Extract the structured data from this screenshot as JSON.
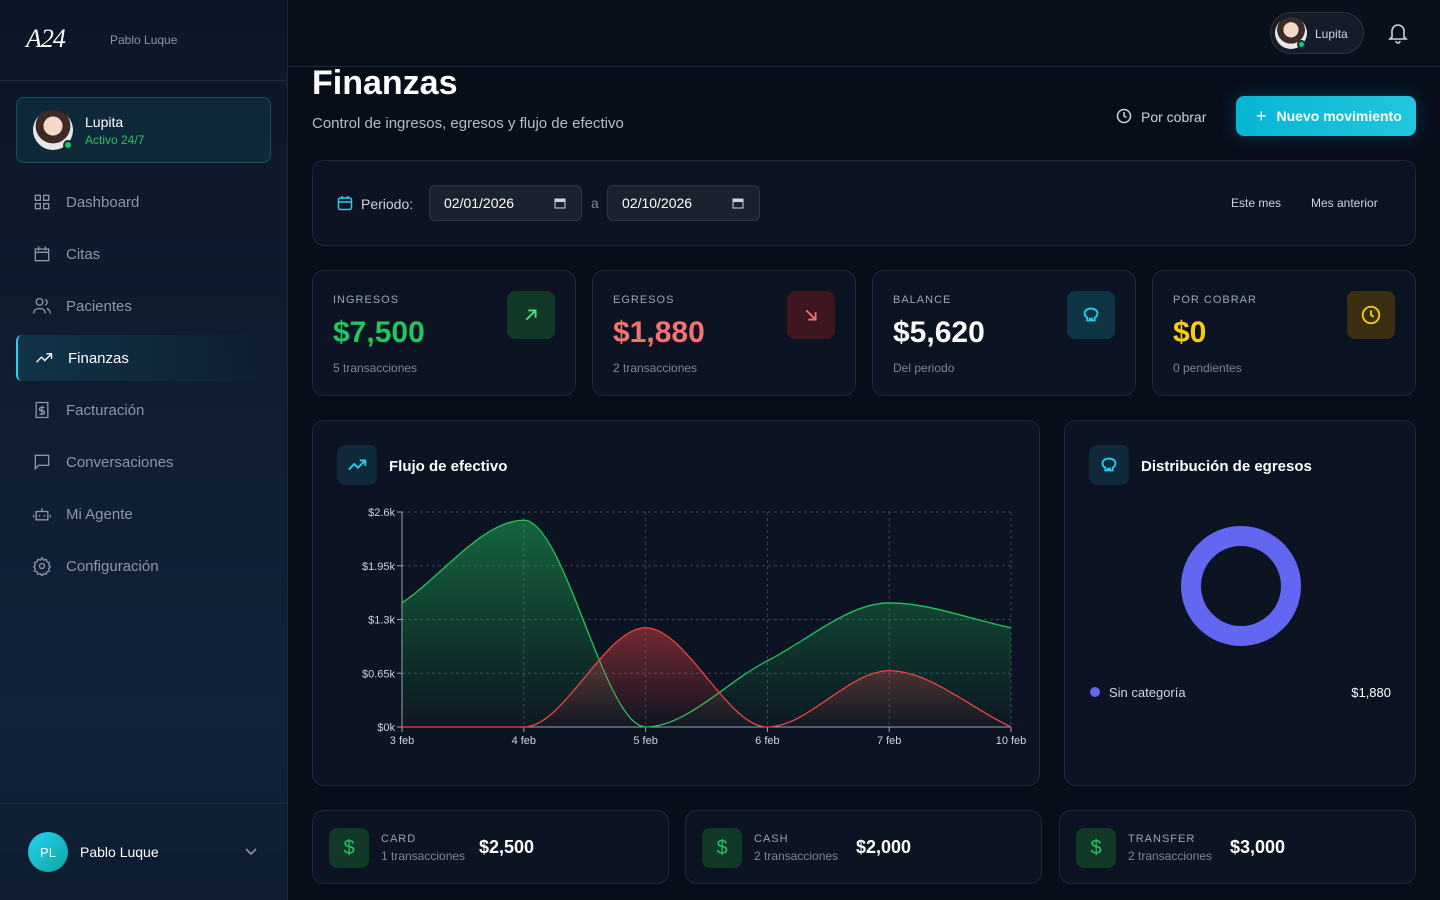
{
  "sidebar": {
    "brand": "A24",
    "brand_user": "Pablo Luque",
    "agent": {
      "name": "Lupita",
      "status": "Activo 24/7"
    },
    "nav": [
      "Dashboard",
      "Citas",
      "Pacientes",
      "Finanzas",
      "Facturación",
      "Conversaciones",
      "Mi Agente",
      "Configuración"
    ],
    "user": {
      "initials": "PL",
      "name": "Pablo Luque"
    }
  },
  "header": {
    "agent": "Lupita"
  },
  "page": {
    "title": "Finanzas",
    "subtitle": "Control de ingresos, egresos y flujo de efectivo",
    "actions": [
      "Por cobrar",
      "Nuevo movimiento"
    ]
  },
  "filter": {
    "label": "Periodo:",
    "from": "02/01/2026",
    "separator": "a",
    "to": "02/10/2026",
    "presets": [
      "Este mes",
      "Mes anterior"
    ]
  },
  "stats": [
    {
      "label": "INGRESOS",
      "value": "$7,500",
      "note": "5 transacciones"
    },
    {
      "label": "EGRESOS",
      "value": "$1,880",
      "note": "2 transacciones"
    },
    {
      "label": "BALANCE",
      "value": "$5,620",
      "note": "Del periodo"
    },
    {
      "label": "POR COBRAR",
      "value": "$0",
      "note": "0 pendientes"
    }
  ],
  "chart_data": [
    {
      "type": "line",
      "title": "Flujo de efectivo",
      "categories": [
        "3 feb",
        "4 feb",
        "5 feb",
        "6 feb",
        "7 feb",
        "10 feb"
      ],
      "series": [
        {
          "color": "#22c55e",
          "values": [
            1500,
            2500,
            0,
            800,
            1500,
            1200
          ]
        },
        {
          "color": "#ef4444",
          "values": [
            0,
            0,
            1200,
            0,
            680,
            0
          ]
        }
      ],
      "ylim": [
        0,
        2600
      ],
      "yticks": [
        {
          "value": 0,
          "label": "$0k"
        },
        {
          "value": 650,
          "label": "$0.65k"
        },
        {
          "value": 1300,
          "label": "$1.3k"
        },
        {
          "value": 1950,
          "label": "$1.95k"
        },
        {
          "value": 2600,
          "label": "$2.6k"
        }
      ],
      "grid": true
    },
    {
      "type": "pie",
      "title": "Distribución de egresos",
      "categories": [
        "Sin categoría"
      ],
      "values": [
        1880
      ],
      "value_labels": [
        "$1,880"
      ],
      "colors": [
        "#6366f1"
      ]
    }
  ],
  "methods": [
    {
      "label": "CARD",
      "note": "1 transacciones",
      "value": "$2,500"
    },
    {
      "label": "CASH",
      "note": "2 transacciones",
      "value": "$2,000"
    },
    {
      "label": "TRANSFER",
      "note": "2 transacciones",
      "value": "$3,000"
    }
  ]
}
